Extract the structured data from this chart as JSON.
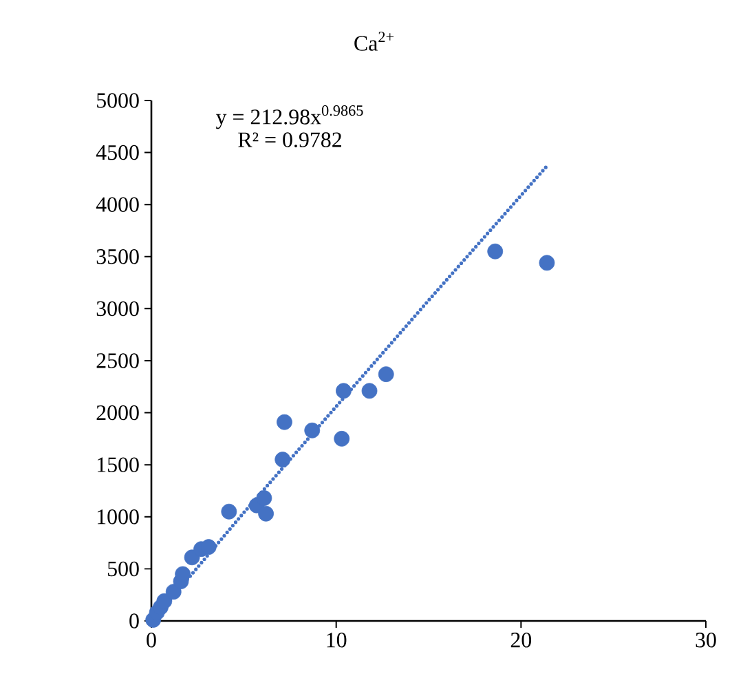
{
  "chart_data": {
    "type": "scatter",
    "title": "Ca$^{2+}$",
    "annotations": [
      "y = 212.98x$^{0.9865}$",
      "R² = 0.9782"
    ],
    "xlim": [
      0,
      30
    ],
    "xticks": [
      0,
      10,
      20,
      30
    ],
    "ylim": [
      0,
      5000
    ],
    "yticks": [
      0,
      500,
      1000,
      1500,
      2000,
      2500,
      3000,
      3500,
      4000,
      4500,
      5000
    ],
    "grid": false,
    "series": [
      {
        "color": "#4472c4",
        "marker": "circle",
        "x": [
          0.1,
          0.3,
          0.5,
          0.7,
          1.2,
          1.6,
          1.7,
          2.2,
          2.7,
          3.1,
          4.2,
          5.7,
          6.1,
          6.2,
          7.1,
          7.2,
          8.7,
          10.3,
          10.4,
          11.8,
          12.7,
          18.6,
          21.4
        ],
        "values": [
          10,
          80,
          130,
          190,
          280,
          380,
          450,
          610,
          690,
          710,
          1050,
          1110,
          1180,
          1030,
          1550,
          1910,
          1830,
          1750,
          2210,
          2210,
          2370,
          3550,
          3440
        ]
      },
      {
        "type": "line",
        "color": "#4472c4",
        "line_style": "dotted",
        "marker": "none",
        "x": [
          0.1,
          5,
          10,
          15,
          21.4
        ],
        "values": [
          10,
          1040,
          2060,
          3080,
          4370
        ]
      }
    ]
  }
}
